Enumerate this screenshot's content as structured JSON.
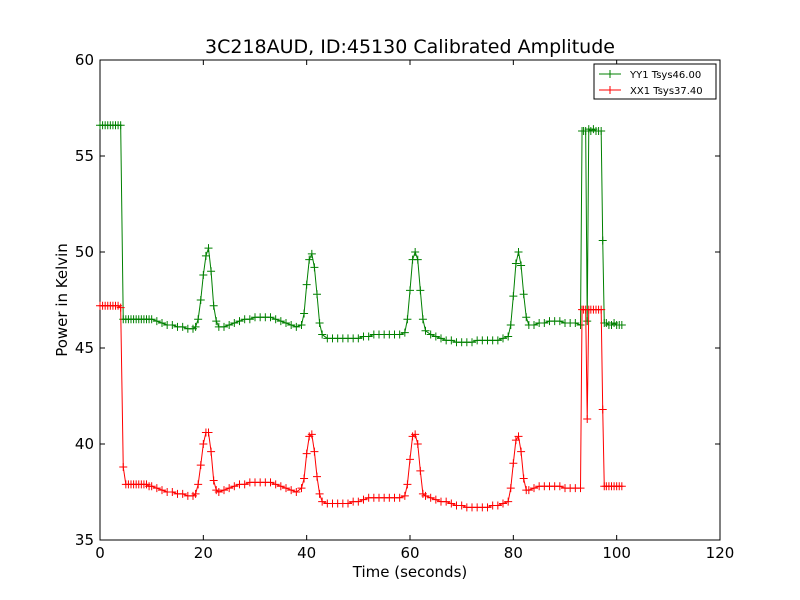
{
  "chart_data": {
    "type": "line",
    "title": "3C218AUD, ID:45130 Calibrated Amplitude",
    "xlabel": "Time (seconds)",
    "ylabel": "Power in Kelvin",
    "xlim": [
      0,
      120
    ],
    "ylim": [
      35,
      60
    ],
    "xticks": [
      0,
      20,
      40,
      60,
      80,
      100,
      120
    ],
    "yticks": [
      35,
      40,
      45,
      50,
      55,
      60
    ],
    "grid": false,
    "legend_position": "top-right",
    "marker": "plus",
    "series": [
      {
        "name": "YY1 Tsys46.00",
        "color": "#008000",
        "x": [
          0,
          0.5,
          1,
          1.5,
          2,
          2.5,
          3,
          3.5,
          4,
          4.5,
          5,
          5.5,
          6,
          6.5,
          7,
          7.5,
          8,
          8.5,
          9,
          9.5,
          10,
          11,
          12,
          13,
          14,
          15,
          16,
          17,
          18,
          18.5,
          19,
          19.5,
          20,
          20.5,
          21,
          21.5,
          22,
          22.5,
          23,
          24,
          25,
          26,
          27,
          28,
          29,
          30,
          31,
          32,
          33,
          34,
          35,
          36,
          37,
          38,
          39,
          39.5,
          40,
          40.5,
          41,
          41.5,
          42,
          42.5,
          43,
          44,
          45,
          46,
          47,
          48,
          49,
          50,
          51,
          52,
          53,
          54,
          55,
          56,
          57,
          58,
          59,
          59.5,
          60,
          60.5,
          61,
          61.5,
          62,
          62.5,
          63,
          64,
          65,
          66,
          67,
          68,
          69,
          70,
          71,
          72,
          73,
          74,
          75,
          76,
          77,
          78,
          79,
          79.5,
          80,
          80.5,
          81,
          81.5,
          82,
          82.5,
          83,
          84,
          85,
          86,
          87,
          88,
          89,
          90,
          91,
          92,
          93,
          93.3,
          93.6,
          94,
          94.3,
          94.6,
          95,
          95.5,
          96,
          96.5,
          97,
          97.3,
          97.6,
          98,
          98.5,
          99,
          99.5,
          100,
          100.5,
          101
        ],
        "values": [
          56.6,
          56.6,
          56.6,
          56.6,
          56.6,
          56.6,
          56.6,
          56.6,
          56.6,
          46.5,
          46.5,
          46.5,
          46.5,
          46.5,
          46.5,
          46.5,
          46.5,
          46.5,
          46.5,
          46.5,
          46.5,
          46.4,
          46.3,
          46.2,
          46.2,
          46.1,
          46.1,
          46.0,
          46.0,
          46.1,
          46.5,
          47.5,
          48.8,
          49.8,
          50.2,
          49.0,
          47.2,
          46.4,
          46.1,
          46.1,
          46.2,
          46.3,
          46.4,
          46.5,
          46.5,
          46.6,
          46.6,
          46.6,
          46.6,
          46.5,
          46.4,
          46.3,
          46.2,
          46.1,
          46.2,
          46.8,
          48.3,
          49.6,
          49.9,
          49.2,
          47.8,
          46.3,
          45.7,
          45.5,
          45.5,
          45.5,
          45.5,
          45.5,
          45.5,
          45.5,
          45.6,
          45.6,
          45.7,
          45.7,
          45.7,
          45.7,
          45.7,
          45.7,
          45.8,
          46.5,
          48.0,
          49.6,
          50.0,
          49.6,
          48.0,
          46.5,
          45.9,
          45.7,
          45.6,
          45.5,
          45.4,
          45.4,
          45.3,
          45.3,
          45.3,
          45.3,
          45.4,
          45.4,
          45.4,
          45.4,
          45.4,
          45.5,
          45.6,
          46.2,
          47.7,
          49.4,
          50.0,
          49.3,
          47.8,
          46.6,
          46.2,
          46.2,
          46.3,
          46.3,
          46.4,
          46.4,
          46.4,
          46.3,
          46.3,
          46.3,
          46.2,
          56.3,
          56.3,
          56.3,
          46.4,
          56.4,
          56.3,
          56.4,
          56.3,
          56.3,
          56.3,
          50.6,
          46.3,
          46.3,
          46.2,
          46.2,
          46.3,
          46.2,
          46.2,
          46.2
        ]
      },
      {
        "name": "XX1 Tsys37.40",
        "color": "#ff0000",
        "x": [
          0,
          0.5,
          1,
          1.5,
          2,
          2.5,
          3,
          3.5,
          4,
          4.5,
          5,
          5.5,
          6,
          6.5,
          7,
          7.5,
          8,
          8.5,
          9,
          9.5,
          10,
          11,
          12,
          13,
          14,
          15,
          16,
          17,
          18,
          18.5,
          19,
          19.5,
          20,
          20.5,
          21,
          21.5,
          22,
          22.5,
          23,
          24,
          25,
          26,
          27,
          28,
          29,
          30,
          31,
          32,
          33,
          34,
          35,
          36,
          37,
          38,
          39,
          39.5,
          40,
          40.5,
          41,
          41.5,
          42,
          42.5,
          43,
          44,
          45,
          46,
          47,
          48,
          49,
          50,
          51,
          52,
          53,
          54,
          55,
          56,
          57,
          58,
          59,
          59.5,
          60,
          60.5,
          61,
          61.5,
          62,
          62.5,
          63,
          64,
          65,
          66,
          67,
          68,
          69,
          70,
          71,
          72,
          73,
          74,
          75,
          76,
          77,
          78,
          79,
          79.5,
          80,
          80.5,
          81,
          81.5,
          82,
          82.5,
          83,
          84,
          85,
          86,
          87,
          88,
          89,
          90,
          91,
          92,
          93,
          93.3,
          93.6,
          94,
          94.3,
          94.6,
          95,
          95.5,
          96,
          96.5,
          97,
          97.3,
          97.6,
          98,
          98.5,
          99,
          99.5,
          100,
          100.5,
          101
        ],
        "values": [
          47.2,
          47.2,
          47.2,
          47.2,
          47.2,
          47.2,
          47.2,
          47.2,
          47.1,
          38.8,
          37.9,
          37.9,
          37.9,
          37.9,
          37.9,
          37.9,
          37.9,
          37.9,
          37.9,
          37.8,
          37.8,
          37.7,
          37.6,
          37.5,
          37.5,
          37.4,
          37.4,
          37.3,
          37.3,
          37.4,
          37.9,
          38.9,
          40.0,
          40.6,
          40.6,
          39.6,
          38.1,
          37.6,
          37.5,
          37.6,
          37.7,
          37.8,
          37.9,
          37.9,
          38.0,
          38.0,
          38.0,
          38.0,
          38.0,
          37.9,
          37.8,
          37.7,
          37.6,
          37.5,
          37.7,
          38.2,
          39.5,
          40.4,
          40.5,
          39.6,
          38.3,
          37.4,
          37.0,
          36.9,
          36.9,
          36.9,
          36.9,
          36.9,
          37.0,
          37.0,
          37.1,
          37.2,
          37.2,
          37.2,
          37.2,
          37.2,
          37.2,
          37.2,
          37.3,
          37.9,
          39.2,
          40.4,
          40.5,
          40.0,
          38.6,
          37.4,
          37.3,
          37.2,
          37.1,
          37.0,
          37.0,
          36.9,
          36.8,
          36.8,
          36.7,
          36.7,
          36.7,
          36.7,
          36.7,
          36.8,
          36.8,
          36.9,
          37.0,
          37.7,
          39.0,
          40.2,
          40.4,
          39.6,
          38.2,
          37.6,
          37.6,
          37.7,
          37.8,
          37.8,
          37.8,
          37.8,
          37.8,
          37.7,
          37.7,
          37.7,
          37.7,
          47.0,
          47.0,
          47.0,
          41.3,
          47.0,
          47.0,
          47.0,
          47.0,
          47.0,
          47.0,
          41.8,
          37.8,
          37.8,
          37.8,
          37.8,
          37.8,
          37.8,
          37.8,
          37.8
        ]
      }
    ]
  }
}
